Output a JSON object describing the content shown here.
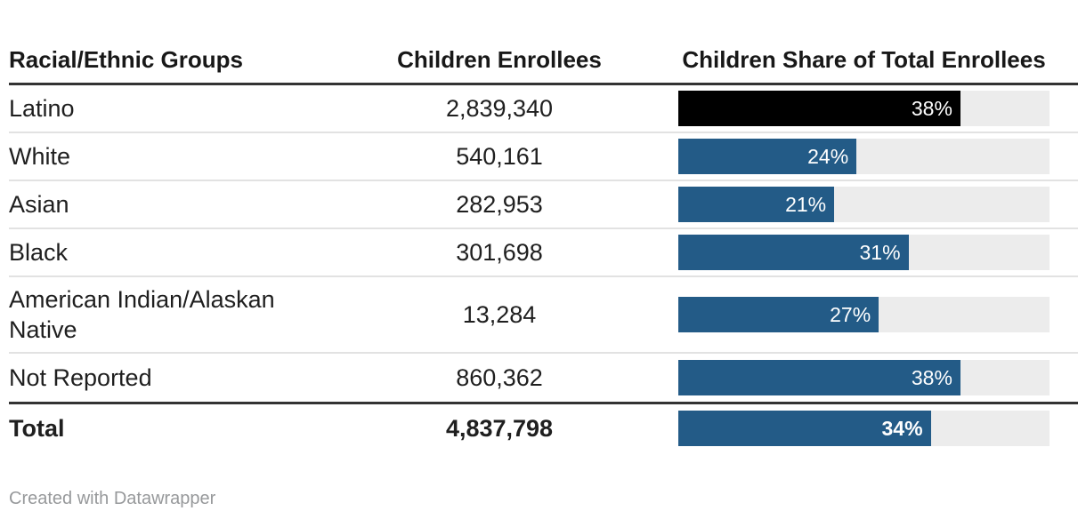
{
  "table": {
    "columns": [
      {
        "label": "Racial/Ethnic Groups"
      },
      {
        "label": "Children Enrollees"
      },
      {
        "label": "Children Share of Total Enrollees"
      }
    ],
    "rows": [
      {
        "group": "Latino",
        "enrollees": "2,839,340",
        "share": 38,
        "share_label": "38%",
        "bar_color": "#000000"
      },
      {
        "group": "White",
        "enrollees": "540,161",
        "share": 24,
        "share_label": "24%"
      },
      {
        "group": "Asian",
        "enrollees": "282,953",
        "share": 21,
        "share_label": "21%"
      },
      {
        "group": "Black",
        "enrollees": "301,698",
        "share": 31,
        "share_label": "31%"
      },
      {
        "group": "American Indian/Alaskan Native",
        "enrollees": "13,284",
        "share": 27,
        "share_label": "27%"
      },
      {
        "group": "Not Reported",
        "enrollees": "860,362",
        "share": 38,
        "share_label": "38%"
      }
    ],
    "total": {
      "group": "Total",
      "enrollees": "4,837,798",
      "share": 34,
      "share_label": "34%"
    }
  },
  "footer": {
    "credit": "Created with Datawrapper"
  },
  "colors": {
    "bar_fill": "#235b87",
    "bar_fill_highlight": "#000000",
    "bar_track": "#ececec",
    "rule_dark": "#333333",
    "row_separator": "#e2e2e2",
    "text": "#1f1f1f",
    "credit_text": "#97999b"
  },
  "chart_data": {
    "type": "table",
    "title": "",
    "columns": [
      "Racial/Ethnic Groups",
      "Children Enrollees",
      "Children Share of Total Enrollees"
    ],
    "categories": [
      "Latino",
      "White",
      "Asian",
      "Black",
      "American Indian/Alaskan Native",
      "Not Reported",
      "Total"
    ],
    "series": [
      {
        "name": "Children Enrollees",
        "values": [
          2839340,
          540161,
          282953,
          301698,
          13284,
          860362,
          4837798
        ]
      },
      {
        "name": "Children Share of Total Enrollees (%)",
        "values": [
          38,
          24,
          21,
          31,
          27,
          38,
          34
        ]
      }
    ],
    "bar_axis_max": 50,
    "notes": "Inline horizontal bars in third column; Latino bar highlighted black; Total row bold with rules above header and above total row."
  }
}
